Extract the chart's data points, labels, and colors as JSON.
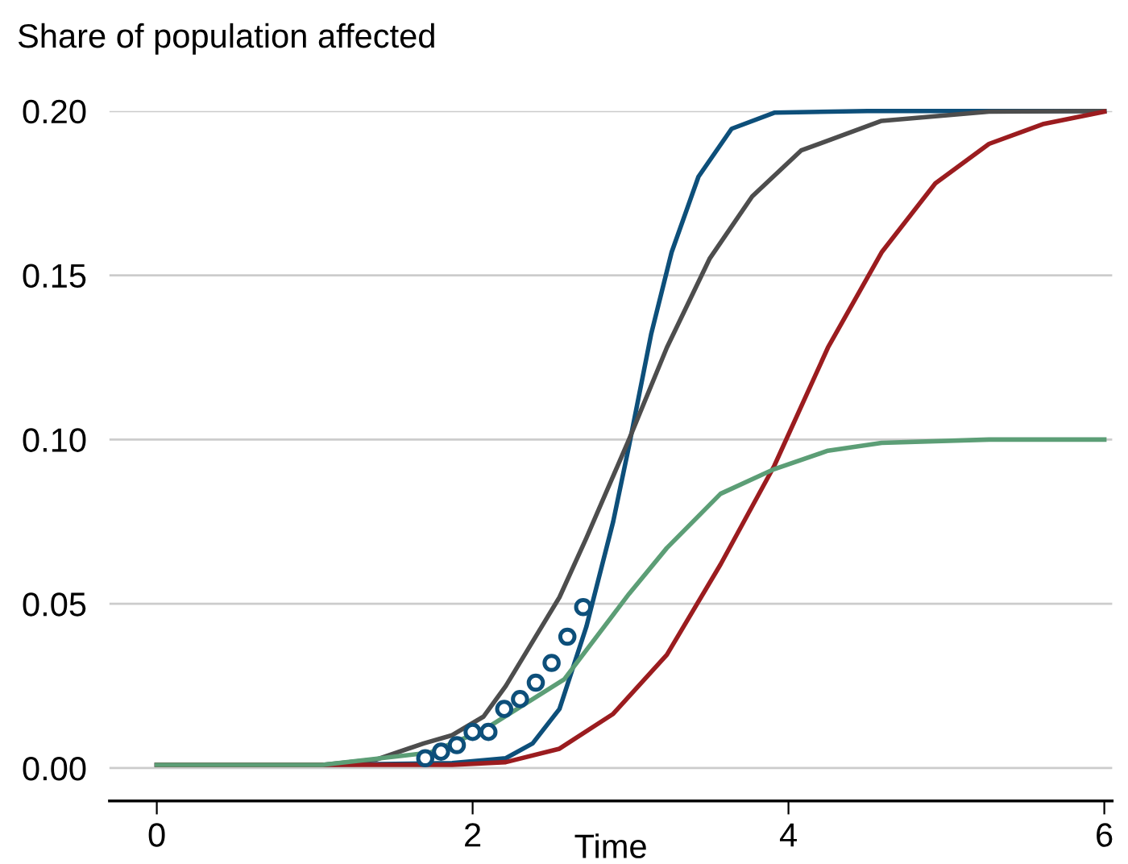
{
  "chart_data": {
    "type": "line",
    "ylabel": "Share of population affected",
    "xlabel": "Time",
    "xlim": [
      -0.3,
      6.05
    ],
    "xticks": [
      0,
      2,
      4,
      6
    ],
    "ylim": [
      -0.01,
      0.2
    ],
    "yticks": [
      {
        "value": 0,
        "label": "0.00"
      },
      0.05,
      {
        "value": 0.1,
        "label": "0.10"
      },
      0.15,
      {
        "value": 0.2,
        "label": "0.20"
      }
    ],
    "grid": "y",
    "marker": "none",
    "line_style": "solid",
    "series": [
      {
        "color": "#0d4f7a",
        "x": [
          0,
          1.0,
          1.87,
          2.21,
          2.38,
          2.55,
          2.72,
          2.89,
          2.99,
          3.13,
          3.26,
          3.43,
          3.64,
          3.91,
          4.5,
          6
        ],
        "values": [
          0.001,
          0.001,
          0.0015,
          0.003,
          0.0075,
          0.018,
          0.043,
          0.075,
          0.098,
          0.132,
          0.157,
          0.18,
          0.1946,
          0.1995,
          0.2,
          0.2
        ]
      },
      {
        "color": "#4d4d4d",
        "x": [
          0,
          1.05,
          1.39,
          1.69,
          1.87,
          2.07,
          2.21,
          2.55,
          2.72,
          2.99,
          3.23,
          3.5,
          3.77,
          4.08,
          4.59,
          5.27,
          6
        ],
        "values": [
          0.001,
          0.001,
          0.0026,
          0.0075,
          0.01,
          0.0157,
          0.025,
          0.052,
          0.07,
          0.1,
          0.128,
          0.155,
          0.174,
          0.188,
          0.197,
          0.1998,
          0.2
        ]
      },
      {
        "color": "#9b1c1f",
        "x": [
          0,
          1.87,
          2.21,
          2.55,
          2.89,
          3.23,
          3.57,
          3.91,
          4.25,
          4.59,
          4.93,
          5.27,
          5.61,
          6
        ],
        "values": [
          0.001,
          0.001,
          0.0018,
          0.0059,
          0.0165,
          0.0345,
          0.062,
          0.092,
          0.128,
          0.157,
          0.178,
          0.19,
          0.196,
          0.1998
        ]
      },
      {
        "color": "#5c9e76",
        "x": [
          0,
          1.05,
          1.73,
          2.07,
          2.58,
          2.99,
          3.23,
          3.57,
          3.91,
          4.25,
          4.59,
          5.27,
          6
        ],
        "values": [
          0.001,
          0.001,
          0.0047,
          0.0116,
          0.027,
          0.053,
          0.067,
          0.0835,
          0.091,
          0.0966,
          0.099,
          0.1,
          0.1
        ]
      },
      {
        "type": "scatter",
        "marker": "circle",
        "color": "#0d4f7a",
        "x": [
          1.7,
          1.8,
          1.9,
          2.0,
          2.1,
          2.2,
          2.3,
          2.4,
          2.5,
          2.6,
          2.7
        ],
        "values": [
          0.003,
          0.005,
          0.007,
          0.011,
          0.011,
          0.018,
          0.021,
          0.026,
          0.032,
          0.04,
          0.049
        ]
      }
    ]
  }
}
